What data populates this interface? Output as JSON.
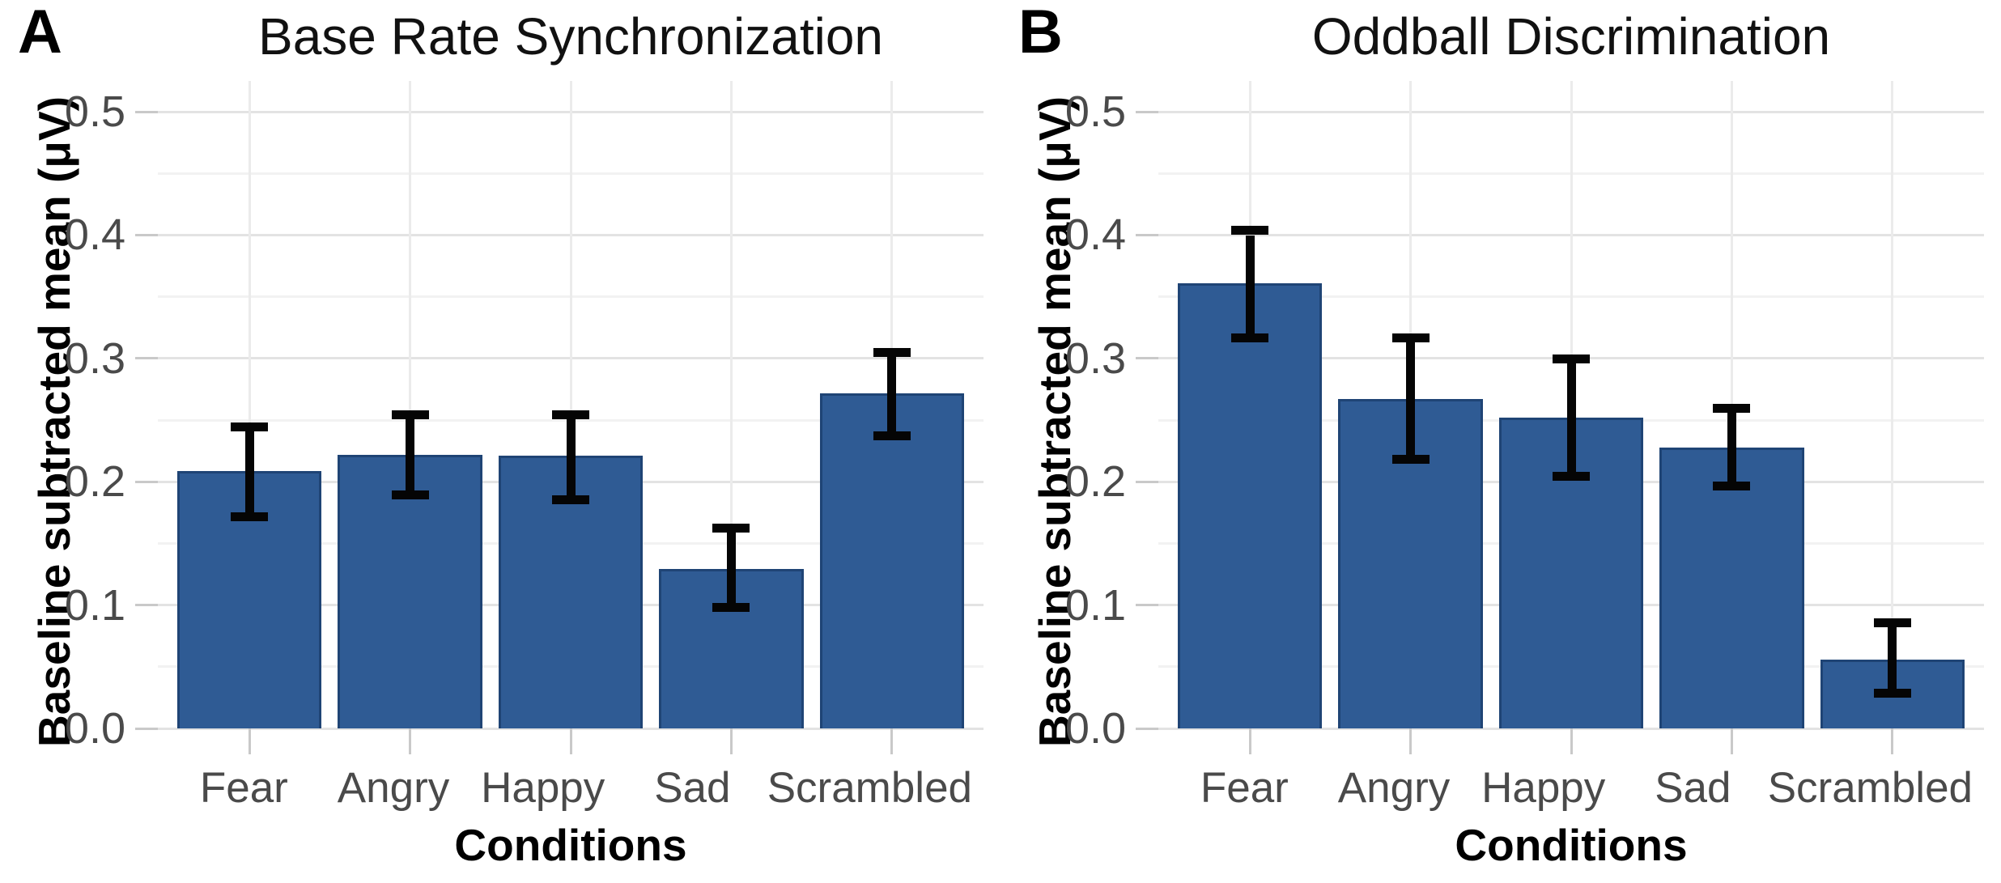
{
  "chart_data": [
    {
      "type": "bar",
      "panel_label": "A",
      "title": "Base Rate Synchronization",
      "xlabel": "Conditions",
      "ylabel": "Baseline subtracted mean (μV)",
      "categories": [
        "Fear",
        "Angry",
        "Happy",
        "Sad",
        "Scrambled"
      ],
      "values": [
        0.209,
        0.222,
        0.221,
        0.129,
        0.272
      ],
      "error_low": [
        0.175,
        0.193,
        0.189,
        0.102,
        0.241
      ],
      "error_high": [
        0.241,
        0.251,
        0.251,
        0.159,
        0.301
      ],
      "ylim": [
        0,
        0.525
      ],
      "yticks": [
        0,
        0.1,
        0.2,
        0.3,
        0.4,
        0.5
      ],
      "ytick_labels": [
        "0.0",
        "0.1",
        "0.2",
        "0.3",
        "0.4",
        "0.5"
      ],
      "yticks_minor": [
        0.05,
        0.15,
        0.25,
        0.35,
        0.45
      ],
      "grid": "horizontal major+minor light gray, vertical line at each category center",
      "legend": "none",
      "bar_color": "#2f5b94",
      "bar_edge_color": "#1f4475",
      "error_color": "#050505",
      "tick_label_color": "#4a4a4a"
    },
    {
      "type": "bar",
      "panel_label": "B",
      "title": "Oddball Discrimination",
      "xlabel": "Conditions",
      "ylabel": "Baseline subtracted mean (μV)",
      "categories": [
        "Fear",
        "Angry",
        "Happy",
        "Sad",
        "Scrambled"
      ],
      "values": [
        0.361,
        0.267,
        0.252,
        0.228,
        0.056
      ],
      "error_low": [
        0.32,
        0.222,
        0.208,
        0.2,
        0.032
      ],
      "error_high": [
        0.4,
        0.313,
        0.296,
        0.256,
        0.082
      ],
      "ylim": [
        0,
        0.525
      ],
      "yticks": [
        0,
        0.1,
        0.2,
        0.3,
        0.4,
        0.5
      ],
      "ytick_labels": [
        "0.0",
        "0.1",
        "0.2",
        "0.3",
        "0.4",
        "0.5"
      ],
      "yticks_minor": [
        0.05,
        0.15,
        0.25,
        0.35,
        0.45
      ],
      "grid": "horizontal major+minor light gray, vertical line at each category center",
      "legend": "none",
      "bar_color": "#2f5b94",
      "bar_edge_color": "#1f4475",
      "error_color": "#050505",
      "tick_label_color": "#4a4a4a"
    }
  ]
}
